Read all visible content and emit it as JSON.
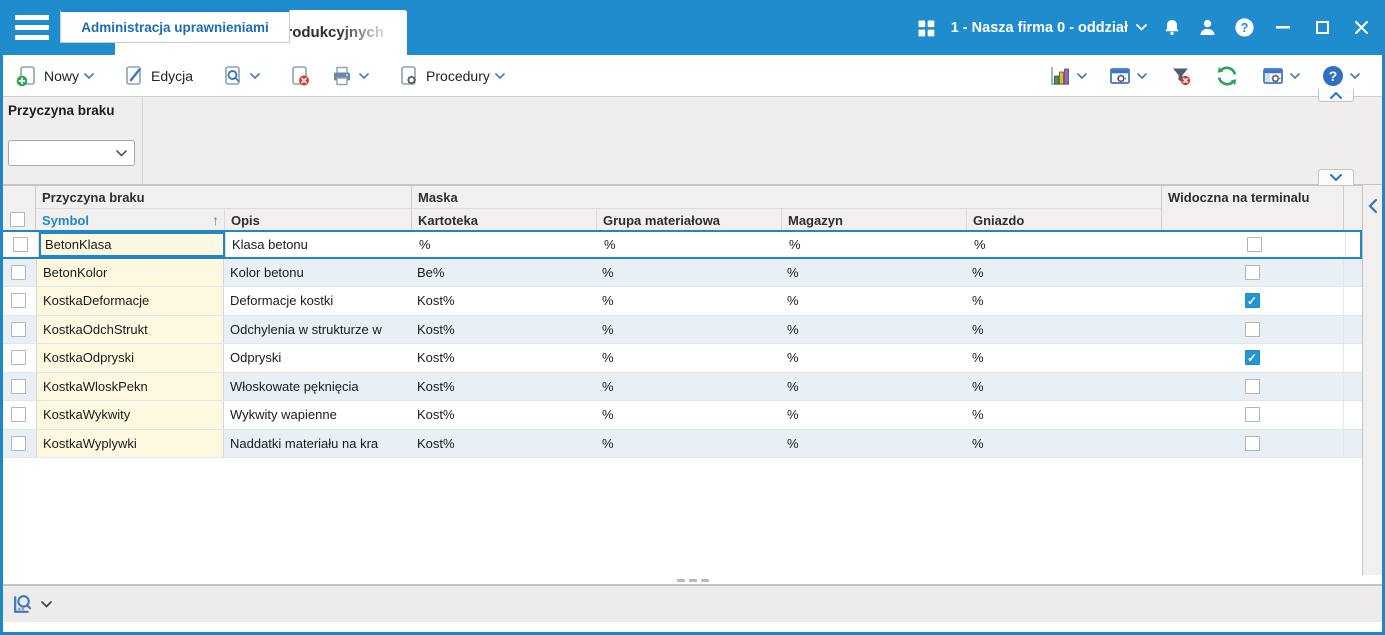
{
  "colors": {
    "topbar": "#1f8ccd",
    "accent": "#1f87c5",
    "checkbox_checked": "#2196d3",
    "symbol_cell_bg": "#fcf9e0",
    "alt_row_bg": "#e8eff5",
    "sort_arrow_green": "#2e9e57"
  },
  "topbar": {
    "tab_title": "Przyczyny braków produkcyjnych",
    "company": "1 - Nasza firma 0 - oddział"
  },
  "toolbar": {
    "new": "Nowy",
    "edit": "Edycja",
    "procedures": "Procedury"
  },
  "filter_panel": {
    "label": "Przyczyna braku",
    "combo_value": ""
  },
  "table": {
    "group_headers": {
      "reason": "Przyczyna braku",
      "mask": "Maska",
      "visible": "Widoczna na terminalu"
    },
    "columns": {
      "symbol": "Symbol",
      "opis": "Opis",
      "kartoteka": "Kartoteka",
      "grupa": "Grupa materiałowa",
      "magazyn": "Magazyn",
      "gniazdo": "Gniazdo"
    },
    "sort_indicator": "↑",
    "rows": [
      {
        "symbol": "BetonKlasa",
        "opis": "Klasa betonu",
        "kartoteka": "%",
        "grupa": "%",
        "magazyn": "%",
        "gniazdo": "%",
        "widoczna": false,
        "selected": true
      },
      {
        "symbol": "BetonKolor",
        "opis": "Kolor betonu",
        "kartoteka": "Be%",
        "grupa": "%",
        "magazyn": "%",
        "gniazdo": "%",
        "widoczna": false,
        "selected": false
      },
      {
        "symbol": "KostkaDeformacje",
        "opis": "Deformacje kostki",
        "kartoteka": "Kost%",
        "grupa": "%",
        "magazyn": "%",
        "gniazdo": "%",
        "widoczna": true,
        "selected": false
      },
      {
        "symbol": "KostkaOdchStrukt",
        "opis": "Odchylenia w strukturze w",
        "kartoteka": "Kost%",
        "grupa": "%",
        "magazyn": "%",
        "gniazdo": "%",
        "widoczna": false,
        "selected": false
      },
      {
        "symbol": "KostkaOdpryski",
        "opis": "Odpryski",
        "kartoteka": "Kost%",
        "grupa": "%",
        "magazyn": "%",
        "gniazdo": "%",
        "widoczna": true,
        "selected": false
      },
      {
        "symbol": "KostkaWloskPekn",
        "opis": "Włoskowate pęknięcia",
        "kartoteka": "Kost%",
        "grupa": "%",
        "magazyn": "%",
        "gniazdo": "%",
        "widoczna": false,
        "selected": false
      },
      {
        "symbol": "KostkaWykwity",
        "opis": "Wykwity wapienne",
        "kartoteka": "Kost%",
        "grupa": "%",
        "magazyn": "%",
        "gniazdo": "%",
        "widoczna": false,
        "selected": false
      },
      {
        "symbol": "KostkaWyplywki",
        "opis": "Naddatki materiału na kra",
        "kartoteka": "Kost%",
        "grupa": "%",
        "magazyn": "%",
        "gniazdo": "%",
        "widoczna": false,
        "selected": false
      }
    ]
  },
  "bottom_bar": {
    "tab": "Administracja uprawnieniami"
  }
}
